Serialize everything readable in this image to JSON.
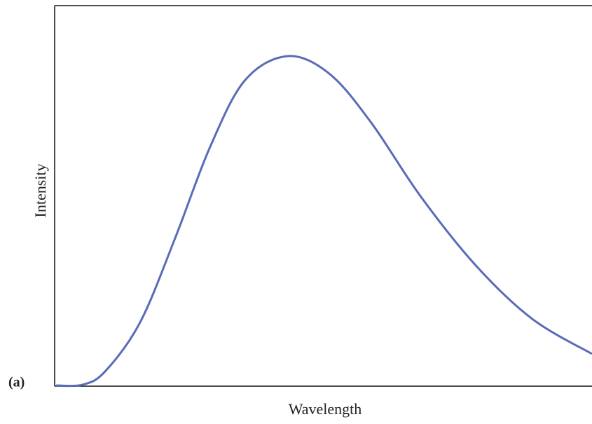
{
  "chart_data": {
    "type": "line",
    "x_label": "Wavelength",
    "y_label": "Intensity",
    "annotation": "(a)",
    "x": [
      0.3,
      5.2,
      9.4,
      15.9,
      22.4,
      28.9,
      35.4,
      43.3,
      51.1,
      58.9,
      68.1,
      78.5,
      88.9,
      100
    ],
    "values": [
      0,
      0.2,
      3.7,
      16.6,
      38.7,
      62.7,
      80.3,
      86.7,
      82.1,
      69.2,
      49.8,
      31.4,
      17.5,
      8.3
    ],
    "color": "#5a6cb8",
    "xlim": [
      0,
      100
    ],
    "ylim": [
      0,
      100
    ]
  }
}
